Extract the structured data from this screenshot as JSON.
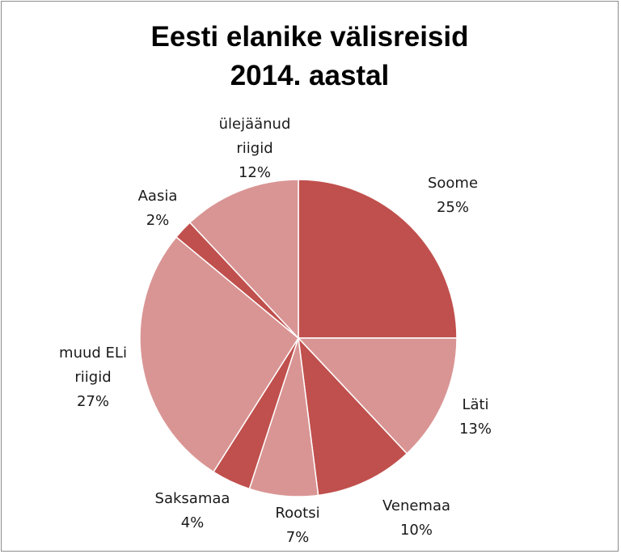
{
  "chart_data": {
    "type": "pie",
    "title_lines": [
      "Eesti elanike välisreisid",
      "2014. aastal"
    ],
    "start_angle_deg": 0,
    "direction": "clockwise",
    "slices": [
      {
        "name_lines": [
          "Soome"
        ],
        "value": 25,
        "percent_label": "25%",
        "color": "#c0504d"
      },
      {
        "name_lines": [
          "Läti"
        ],
        "value": 13,
        "percent_label": "13%",
        "color": "#d99594"
      },
      {
        "name_lines": [
          "Venemaa"
        ],
        "value": 10,
        "percent_label": "10%",
        "color": "#c0504d"
      },
      {
        "name_lines": [
          "Rootsi"
        ],
        "value": 7,
        "percent_label": "7%",
        "color": "#d99594"
      },
      {
        "name_lines": [
          "Saksamaa"
        ],
        "value": 4,
        "percent_label": "4%",
        "color": "#c0504d"
      },
      {
        "name_lines": [
          "muud ELi",
          "riigid"
        ],
        "value": 27,
        "percent_label": "27%",
        "color": "#d99594"
      },
      {
        "name_lines": [
          "Aasia"
        ],
        "value": 2,
        "percent_label": "2%",
        "color": "#c0504d"
      },
      {
        "name_lines": [
          "ülejäänud",
          "riigid"
        ],
        "value": 12,
        "percent_label": "12%",
        "color": "#d99594"
      }
    ]
  }
}
